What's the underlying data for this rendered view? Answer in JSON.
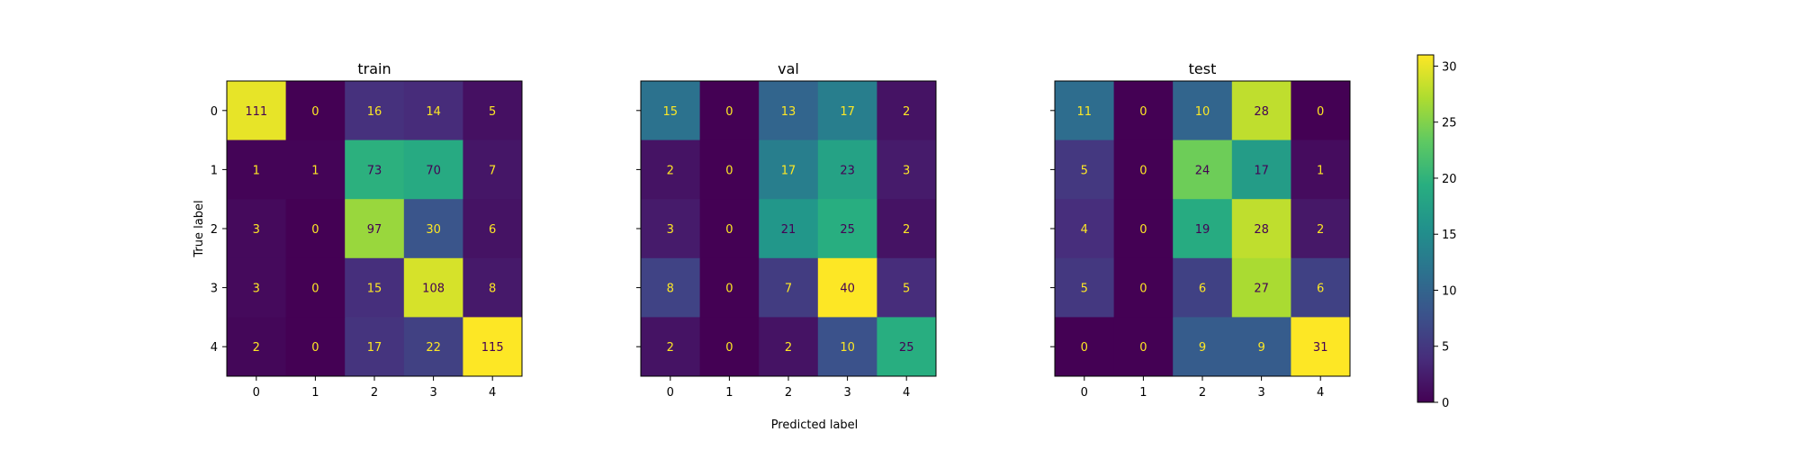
{
  "chart_data": {
    "type": "heatmap",
    "colormap": "viridis",
    "shared_xlabel": "Predicted label",
    "shared_ylabel": "True label",
    "colorbar": {
      "range": [
        0,
        31
      ],
      "ticks": [
        0,
        5,
        10,
        15,
        20,
        25,
        30
      ]
    },
    "panels": [
      {
        "title": "train",
        "x_ticks": [
          "0",
          "1",
          "2",
          "3",
          "4"
        ],
        "y_ticks": [
          "0",
          "1",
          "2",
          "3",
          "4"
        ],
        "matrix": [
          [
            111,
            0,
            16,
            14,
            5
          ],
          [
            1,
            1,
            73,
            70,
            7
          ],
          [
            3,
            0,
            97,
            30,
            6
          ],
          [
            3,
            0,
            15,
            108,
            8
          ],
          [
            2,
            0,
            17,
            22,
            115
          ]
        ]
      },
      {
        "title": "val",
        "x_ticks": [
          "0",
          "1",
          "2",
          "3",
          "4"
        ],
        "y_ticks": [],
        "matrix": [
          [
            15,
            0,
            13,
            17,
            2
          ],
          [
            2,
            0,
            17,
            23,
            3
          ],
          [
            3,
            0,
            21,
            25,
            2
          ],
          [
            8,
            0,
            7,
            40,
            5
          ],
          [
            2,
            0,
            2,
            10,
            25
          ]
        ]
      },
      {
        "title": "test",
        "x_ticks": [
          "0",
          "1",
          "2",
          "3",
          "4"
        ],
        "y_ticks": [],
        "matrix": [
          [
            11,
            0,
            10,
            28,
            0
          ],
          [
            5,
            0,
            24,
            17,
            1
          ],
          [
            4,
            0,
            19,
            28,
            2
          ],
          [
            5,
            0,
            6,
            27,
            6
          ],
          [
            0,
            0,
            9,
            9,
            31
          ]
        ]
      }
    ]
  }
}
